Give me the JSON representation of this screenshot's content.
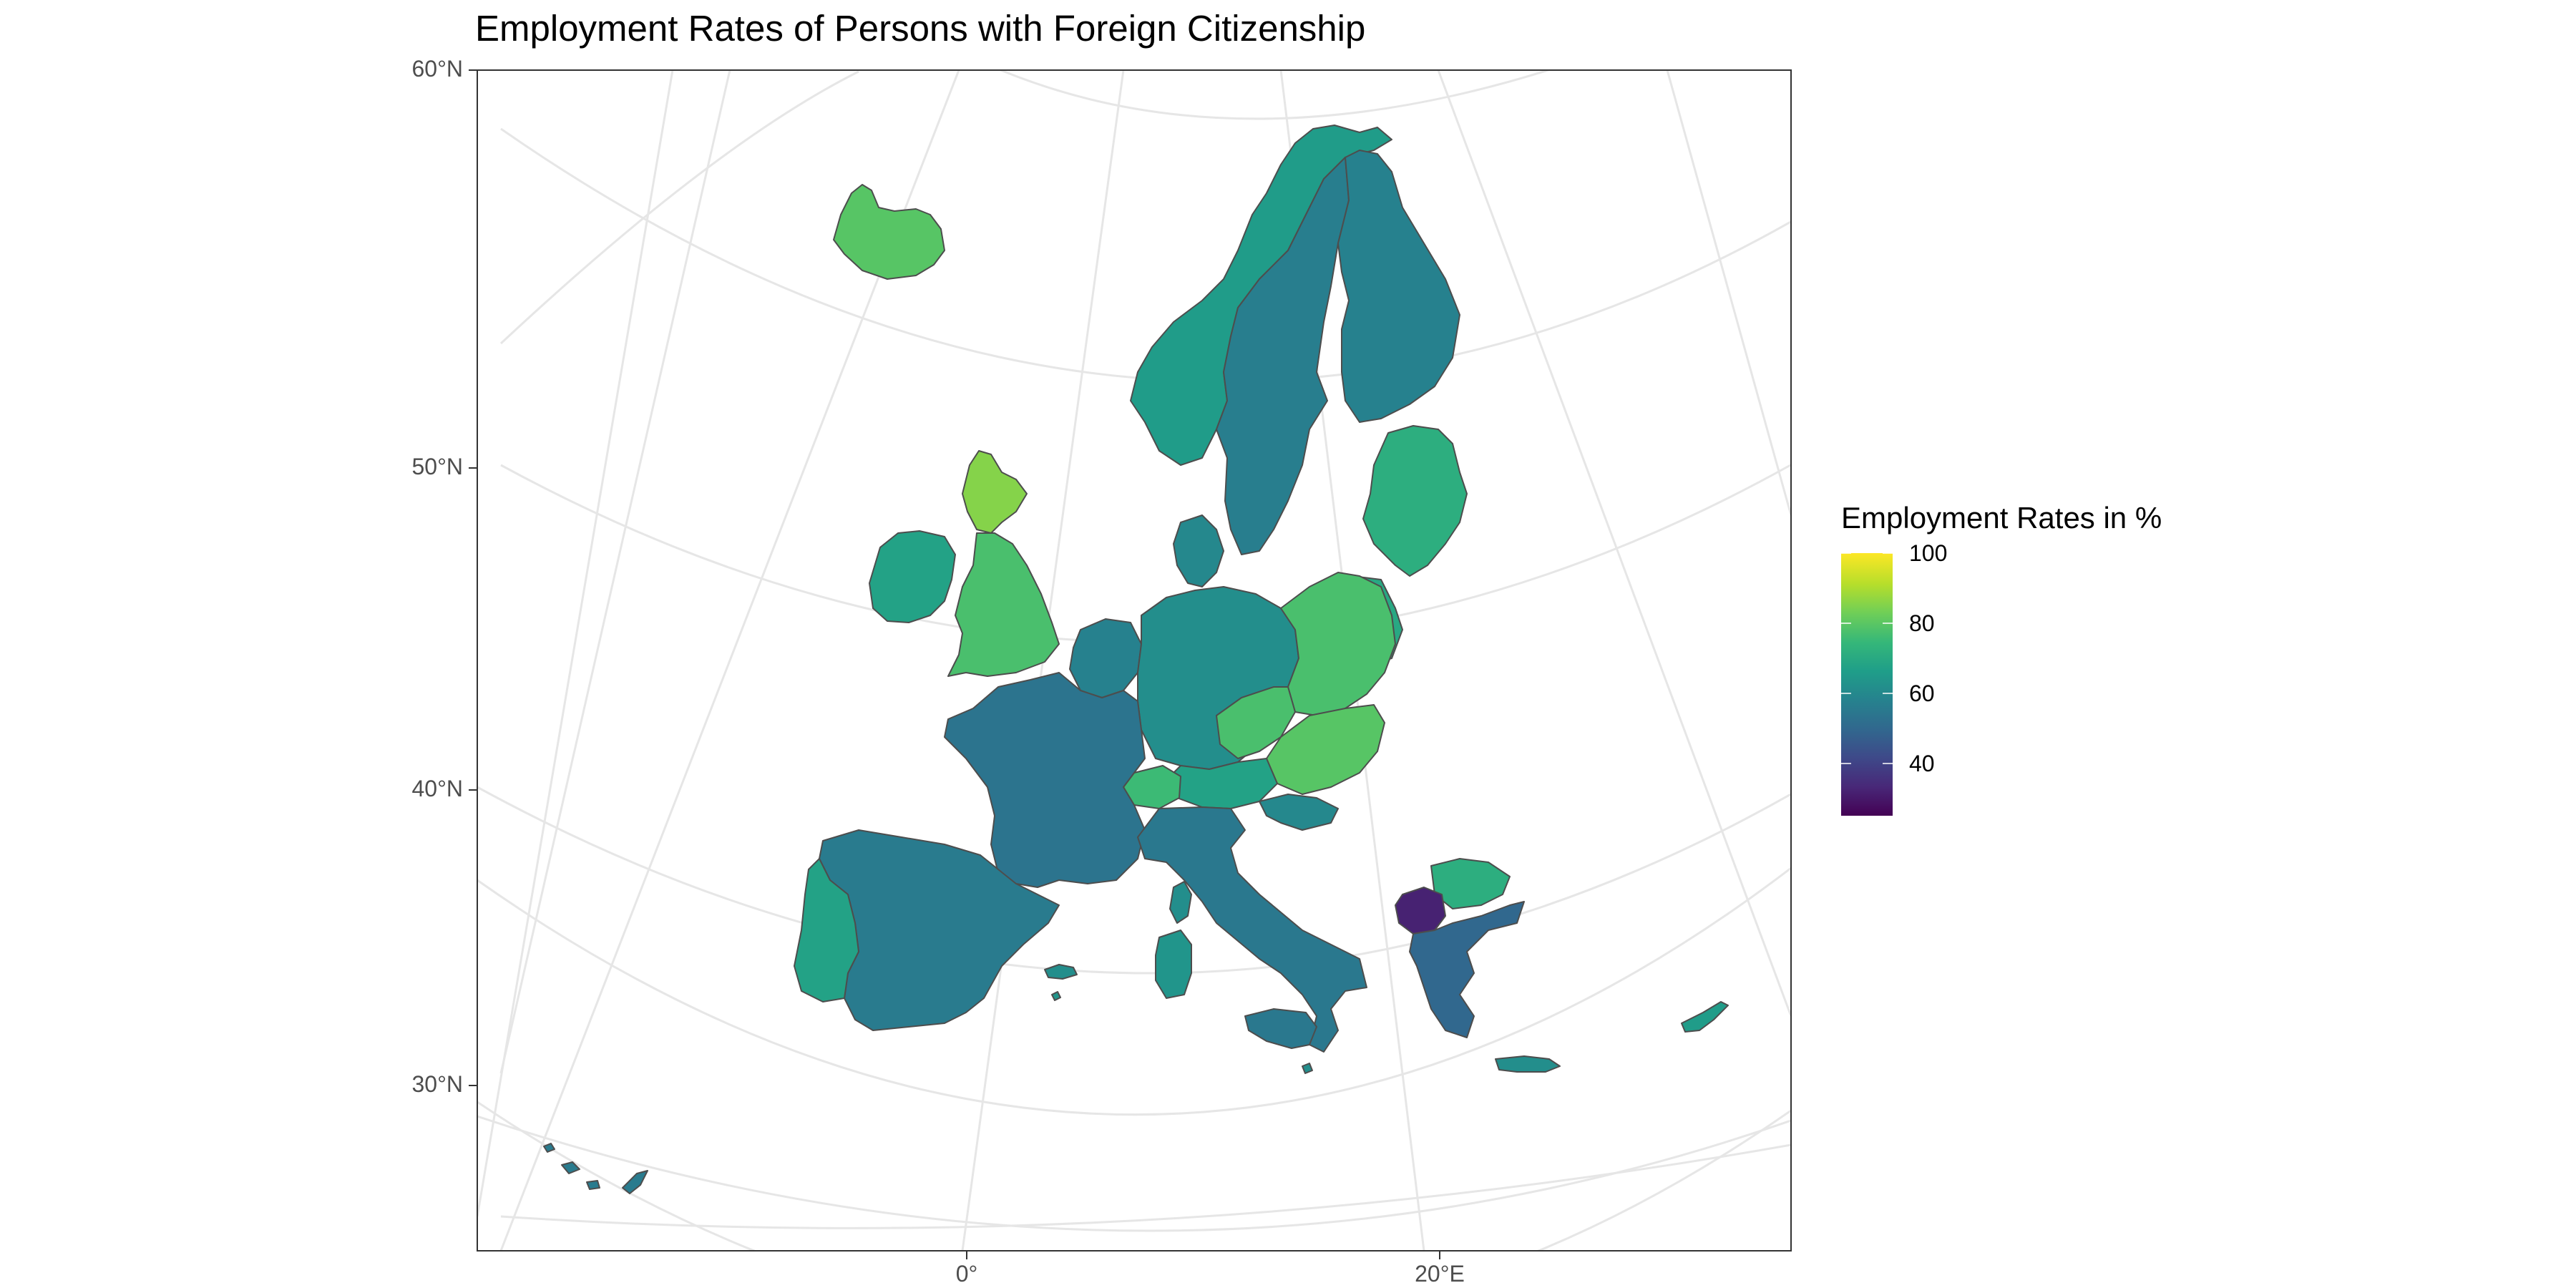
{
  "title": "Employment Rates of Persons with Foreign Citizenship",
  "map": {
    "projection": "Lambert azimuthal equal-area (Europe)",
    "lat_labels": [
      "60°N",
      "50°N",
      "40°N",
      "30°N"
    ],
    "lon_labels": [
      "0°",
      "20°E"
    ],
    "colors": {
      "panel_border": "#333333",
      "graticule": "#e6e6e6",
      "region_border": "#4d4d4d"
    },
    "regions": [
      {
        "name": "Iceland",
        "value": 80
      },
      {
        "name": "Norway",
        "value": 66
      },
      {
        "name": "Sweden",
        "value": 57
      },
      {
        "name": "Finland",
        "value": 58
      },
      {
        "name": "Estonia",
        "value": 72
      },
      {
        "name": "Ireland",
        "value": 68
      },
      {
        "name": "Scotland",
        "value": 86
      },
      {
        "name": "England & Wales",
        "value": 78
      },
      {
        "name": "Denmark",
        "value": 60
      },
      {
        "name": "Netherlands & Belgium",
        "value": 58
      },
      {
        "name": "Germany",
        "value": 62
      },
      {
        "name": "Poland",
        "value": 78
      },
      {
        "name": "Czechia",
        "value": 78
      },
      {
        "name": "Slovakia & Hungary",
        "value": 80
      },
      {
        "name": "Austria",
        "value": 68
      },
      {
        "name": "Switzerland",
        "value": 76
      },
      {
        "name": "France",
        "value": 54
      },
      {
        "name": "Spain",
        "value": 56
      },
      {
        "name": "Portugal",
        "value": 68
      },
      {
        "name": "Italy",
        "value": 55
      },
      {
        "name": "Sardinia",
        "value": 64
      },
      {
        "name": "Sicily",
        "value": 55
      },
      {
        "name": "Croatia & Slovenia",
        "value": 60
      },
      {
        "name": "Bulgaria",
        "value": 72
      },
      {
        "name": "North Greece",
        "value": 32
      },
      {
        "name": "Greece",
        "value": 50
      },
      {
        "name": "Crete",
        "value": 62
      },
      {
        "name": "Cyprus",
        "value": 66
      },
      {
        "name": "Malta",
        "value": 62
      },
      {
        "name": "Canary Islands",
        "value": 56
      },
      {
        "name": "Balearic Islands",
        "value": 62
      },
      {
        "name": "Corsica",
        "value": 62
      },
      {
        "name": "Latvia & Lithuania",
        "value": 70
      }
    ]
  },
  "legend": {
    "title": "Employment Rates in %",
    "ticks": [
      {
        "label": "100",
        "value": 100
      },
      {
        "label": "80",
        "value": 80
      },
      {
        "label": "60",
        "value": 60
      },
      {
        "label": "40",
        "value": 40
      }
    ],
    "range": [
      25,
      100
    ],
    "palette": [
      "#440154",
      "#482878",
      "#3e4989",
      "#31688e",
      "#26828e",
      "#1f9e89",
      "#35b779",
      "#6ece58",
      "#b5de2b",
      "#fde725"
    ]
  }
}
